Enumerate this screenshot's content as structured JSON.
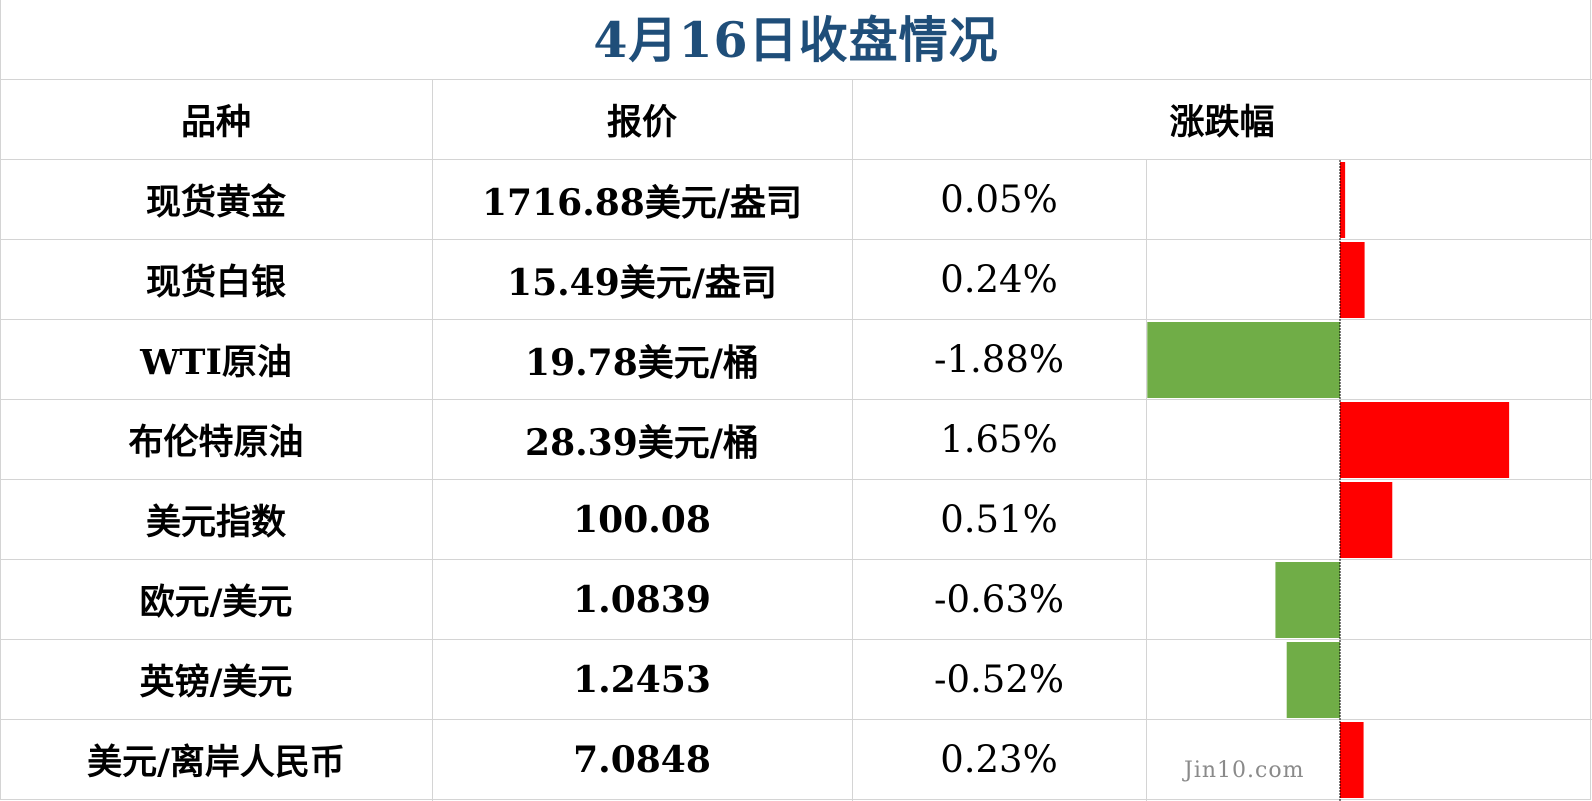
{
  "title": "4月16日收盘情况",
  "headers": {
    "name": "品种",
    "price": "报价",
    "change": "涨跌幅"
  },
  "rows": [
    {
      "name": "现货黄金",
      "price": "1716.88美元/盎司",
      "change_label": "0.05%"
    },
    {
      "name": "现货白银",
      "price": "15.49美元/盎司",
      "change_label": "0.24%"
    },
    {
      "name": "WTI原油",
      "price": "19.78美元/桶",
      "change_label": "-1.88%"
    },
    {
      "name": "布伦特原油",
      "price": "28.39美元/桶",
      "change_label": "1.65%"
    },
    {
      "name": "美元指数",
      "price": "100.08",
      "change_label": "0.51%"
    },
    {
      "name": "欧元/美元",
      "price": "1.0839",
      "change_label": "-0.63%"
    },
    {
      "name": "英镑/美元",
      "price": "1.2453",
      "change_label": "-0.52%"
    },
    {
      "name": "美元/离岸人民币",
      "price": "7.0848",
      "change_label": "0.23%"
    }
  ],
  "chart_data": {
    "type": "bar",
    "orientation": "horizontal",
    "categories": [
      "现货黄金",
      "现货白银",
      "WTI原油",
      "布伦特原油",
      "美元指数",
      "欧元/美元",
      "英镑/美元",
      "美元/离岸人民币"
    ],
    "values": [
      0.05,
      0.24,
      -1.88,
      1.65,
      0.51,
      -0.63,
      -0.52,
      0.23
    ],
    "unit": "%",
    "positive_color": "#ff0000",
    "negative_color": "#70ad47",
    "axis_color": "#000000"
  },
  "watermark": "Jin10.com"
}
